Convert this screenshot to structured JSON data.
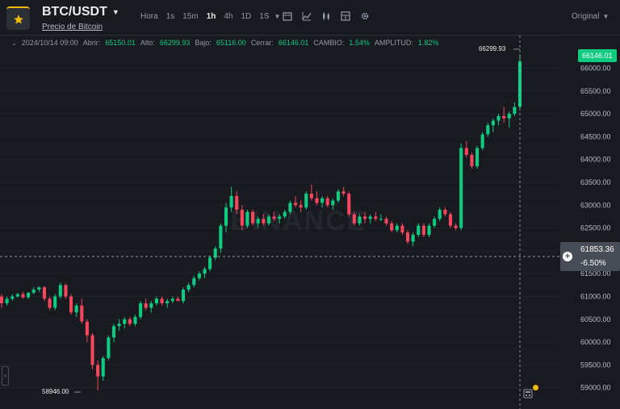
{
  "header": {
    "pair": "BTC/USDT",
    "subtitle": "Precio de Bitcoin",
    "timeframes": [
      "Hora",
      "1s",
      "15m",
      "1h",
      "4h",
      "1D",
      "1S"
    ],
    "active_timeframe": "1h",
    "scale_mode": "Original"
  },
  "ohlc": {
    "date": "2024/10/14 09:00",
    "open_label": "Abrir:",
    "open": "65150.01",
    "high_label": "Alto:",
    "high": "66299.93",
    "low_label": "Bajo:",
    "low": "65116.00",
    "close_label": "Cerrar:",
    "close": "66146.01",
    "change_label": "CAMBIO:",
    "change": "1.54%",
    "amplitude_label": "AMPLITUD:",
    "amplitude": "1.82%"
  },
  "watermark": "BINANCE",
  "price_axis": [
    "66000.00",
    "65500.00",
    "65000.00",
    "64500.00",
    "64000.00",
    "63500.00",
    "63000.00",
    "62500.00",
    "62000.00",
    "61500.00",
    "61000.00",
    "60500.00",
    "60000.00",
    "59500.00",
    "59000.00"
  ],
  "current_price": "66146.01",
  "crosshair": {
    "price": "61853.36",
    "percent": "-6.50%"
  },
  "high_marker": "66299.93",
  "low_marker": "58946.00",
  "colors": {
    "up": "#0ecb81",
    "down": "#f6465d",
    "bg": "#181a20",
    "grid": "#20232a",
    "accent": "#f0b90b"
  },
  "chart_data": {
    "type": "candlestick",
    "ylim": [
      58800,
      66450
    ],
    "candles": [
      [
        61000,
        61050,
        60750,
        60850
      ],
      [
        60850,
        61000,
        60800,
        60950
      ],
      [
        60950,
        61050,
        60900,
        61000
      ],
      [
        61000,
        61080,
        60980,
        61050
      ],
      [
        61050,
        61100,
        60950,
        60980
      ],
      [
        60980,
        61100,
        60950,
        61080
      ],
      [
        61080,
        61200,
        61050,
        61150
      ],
      [
        61150,
        61220,
        61100,
        61200
      ],
      [
        61200,
        61230,
        60900,
        60950
      ],
      [
        60950,
        61000,
        60700,
        60750
      ],
      [
        60750,
        61050,
        60700,
        61000
      ],
      [
        61000,
        61300,
        60950,
        61250
      ],
      [
        61250,
        61280,
        60950,
        61000
      ],
      [
        61000,
        61050,
        60600,
        60650
      ],
      [
        60650,
        60850,
        60550,
        60800
      ],
      [
        60800,
        60950,
        60400,
        60450
      ],
      [
        60450,
        60500,
        60000,
        60150
      ],
      [
        60150,
        60200,
        59400,
        59500
      ],
      [
        59500,
        59600,
        58946,
        59250
      ],
      [
        59250,
        59700,
        59150,
        59650
      ],
      [
        59650,
        60150,
        59600,
        60100
      ],
      [
        60100,
        60400,
        60000,
        60350
      ],
      [
        60350,
        60500,
        60250,
        60400
      ],
      [
        60400,
        60550,
        60300,
        60500
      ],
      [
        60500,
        60550,
        60350,
        60400
      ],
      [
        60400,
        60600,
        60350,
        60550
      ],
      [
        60550,
        60900,
        60500,
        60850
      ],
      [
        60850,
        60950,
        60700,
        60750
      ],
      [
        60750,
        60900,
        60650,
        60850
      ],
      [
        60850,
        61000,
        60800,
        60950
      ],
      [
        60950,
        61000,
        60800,
        60850
      ],
      [
        60850,
        60950,
        60750,
        60900
      ],
      [
        60900,
        61000,
        60850,
        60950
      ],
      [
        60950,
        61000,
        60900,
        60900
      ],
      [
        60900,
        61200,
        60850,
        61150
      ],
      [
        61150,
        61300,
        61100,
        61250
      ],
      [
        61250,
        61450,
        61200,
        61400
      ],
      [
        61400,
        61550,
        61350,
        61500
      ],
      [
        61500,
        61650,
        61400,
        61600
      ],
      [
        61600,
        61900,
        61550,
        61850
      ],
      [
        61850,
        62100,
        61800,
        62050
      ],
      [
        62050,
        62600,
        61950,
        62550
      ],
      [
        62550,
        63050,
        62400,
        62950
      ],
      [
        62950,
        63400,
        62850,
        63200
      ],
      [
        63200,
        63300,
        62800,
        62900
      ],
      [
        62900,
        63000,
        62450,
        62550
      ],
      [
        62550,
        62900,
        62500,
        62850
      ],
      [
        62850,
        62900,
        62550,
        62600
      ],
      [
        62600,
        62750,
        62500,
        62700
      ],
      [
        62700,
        62800,
        62550,
        62600
      ],
      [
        62600,
        62800,
        62550,
        62750
      ],
      [
        62750,
        62850,
        62650,
        62700
      ],
      [
        62700,
        62800,
        62600,
        62750
      ],
      [
        62750,
        62900,
        62700,
        62850
      ],
      [
        62850,
        63100,
        62800,
        63050
      ],
      [
        63050,
        63200,
        62950,
        63000
      ],
      [
        63000,
        63100,
        62850,
        62950
      ],
      [
        62950,
        63300,
        62900,
        63250
      ],
      [
        63250,
        63450,
        63100,
        63150
      ],
      [
        63150,
        63300,
        63000,
        63050
      ],
      [
        63050,
        63200,
        62950,
        63150
      ],
      [
        63150,
        63200,
        62950,
        63000
      ],
      [
        63000,
        63150,
        62900,
        63100
      ],
      [
        63100,
        63350,
        63050,
        63300
      ],
      [
        63300,
        63400,
        63200,
        63250
      ],
      [
        63250,
        63300,
        62750,
        62800
      ],
      [
        62800,
        62850,
        62550,
        62600
      ],
      [
        62600,
        62800,
        62550,
        62750
      ],
      [
        62750,
        62850,
        62600,
        62700
      ],
      [
        62700,
        62800,
        62600,
        62750
      ],
      [
        62750,
        62850,
        62650,
        62700
      ],
      [
        62700,
        62800,
        62650,
        62700
      ],
      [
        62700,
        62750,
        62550,
        62600
      ],
      [
        62600,
        62650,
        62400,
        62450
      ],
      [
        62450,
        62600,
        62400,
        62550
      ],
      [
        62550,
        62600,
        62350,
        62400
      ],
      [
        62400,
        62450,
        62150,
        62200
      ],
      [
        62200,
        62400,
        62100,
        62350
      ],
      [
        62350,
        62600,
        62300,
        62550
      ],
      [
        62550,
        62600,
        62300,
        62350
      ],
      [
        62350,
        62600,
        62300,
        62550
      ],
      [
        62550,
        62750,
        62500,
        62700
      ],
      [
        62700,
        62950,
        62650,
        62900
      ],
      [
        62900,
        62950,
        62750,
        62800
      ],
      [
        62800,
        62850,
        62500,
        62550
      ],
      [
        62550,
        62600,
        62450,
        62500
      ],
      [
        62500,
        64350,
        62450,
        64250
      ],
      [
        64250,
        64400,
        64050,
        64100
      ],
      [
        64100,
        64150,
        63800,
        63850
      ],
      [
        63850,
        64300,
        63800,
        64250
      ],
      [
        64250,
        64600,
        64200,
        64550
      ],
      [
        64550,
        64800,
        64500,
        64750
      ],
      [
        64750,
        64900,
        64600,
        64850
      ],
      [
        64850,
        65000,
        64750,
        64950
      ],
      [
        64950,
        65150,
        64800,
        64900
      ],
      [
        64900,
        65050,
        64700,
        65000
      ],
      [
        65000,
        65250,
        64950,
        65150
      ],
      [
        65150,
        66299.93,
        65116,
        66146.01
      ]
    ]
  }
}
